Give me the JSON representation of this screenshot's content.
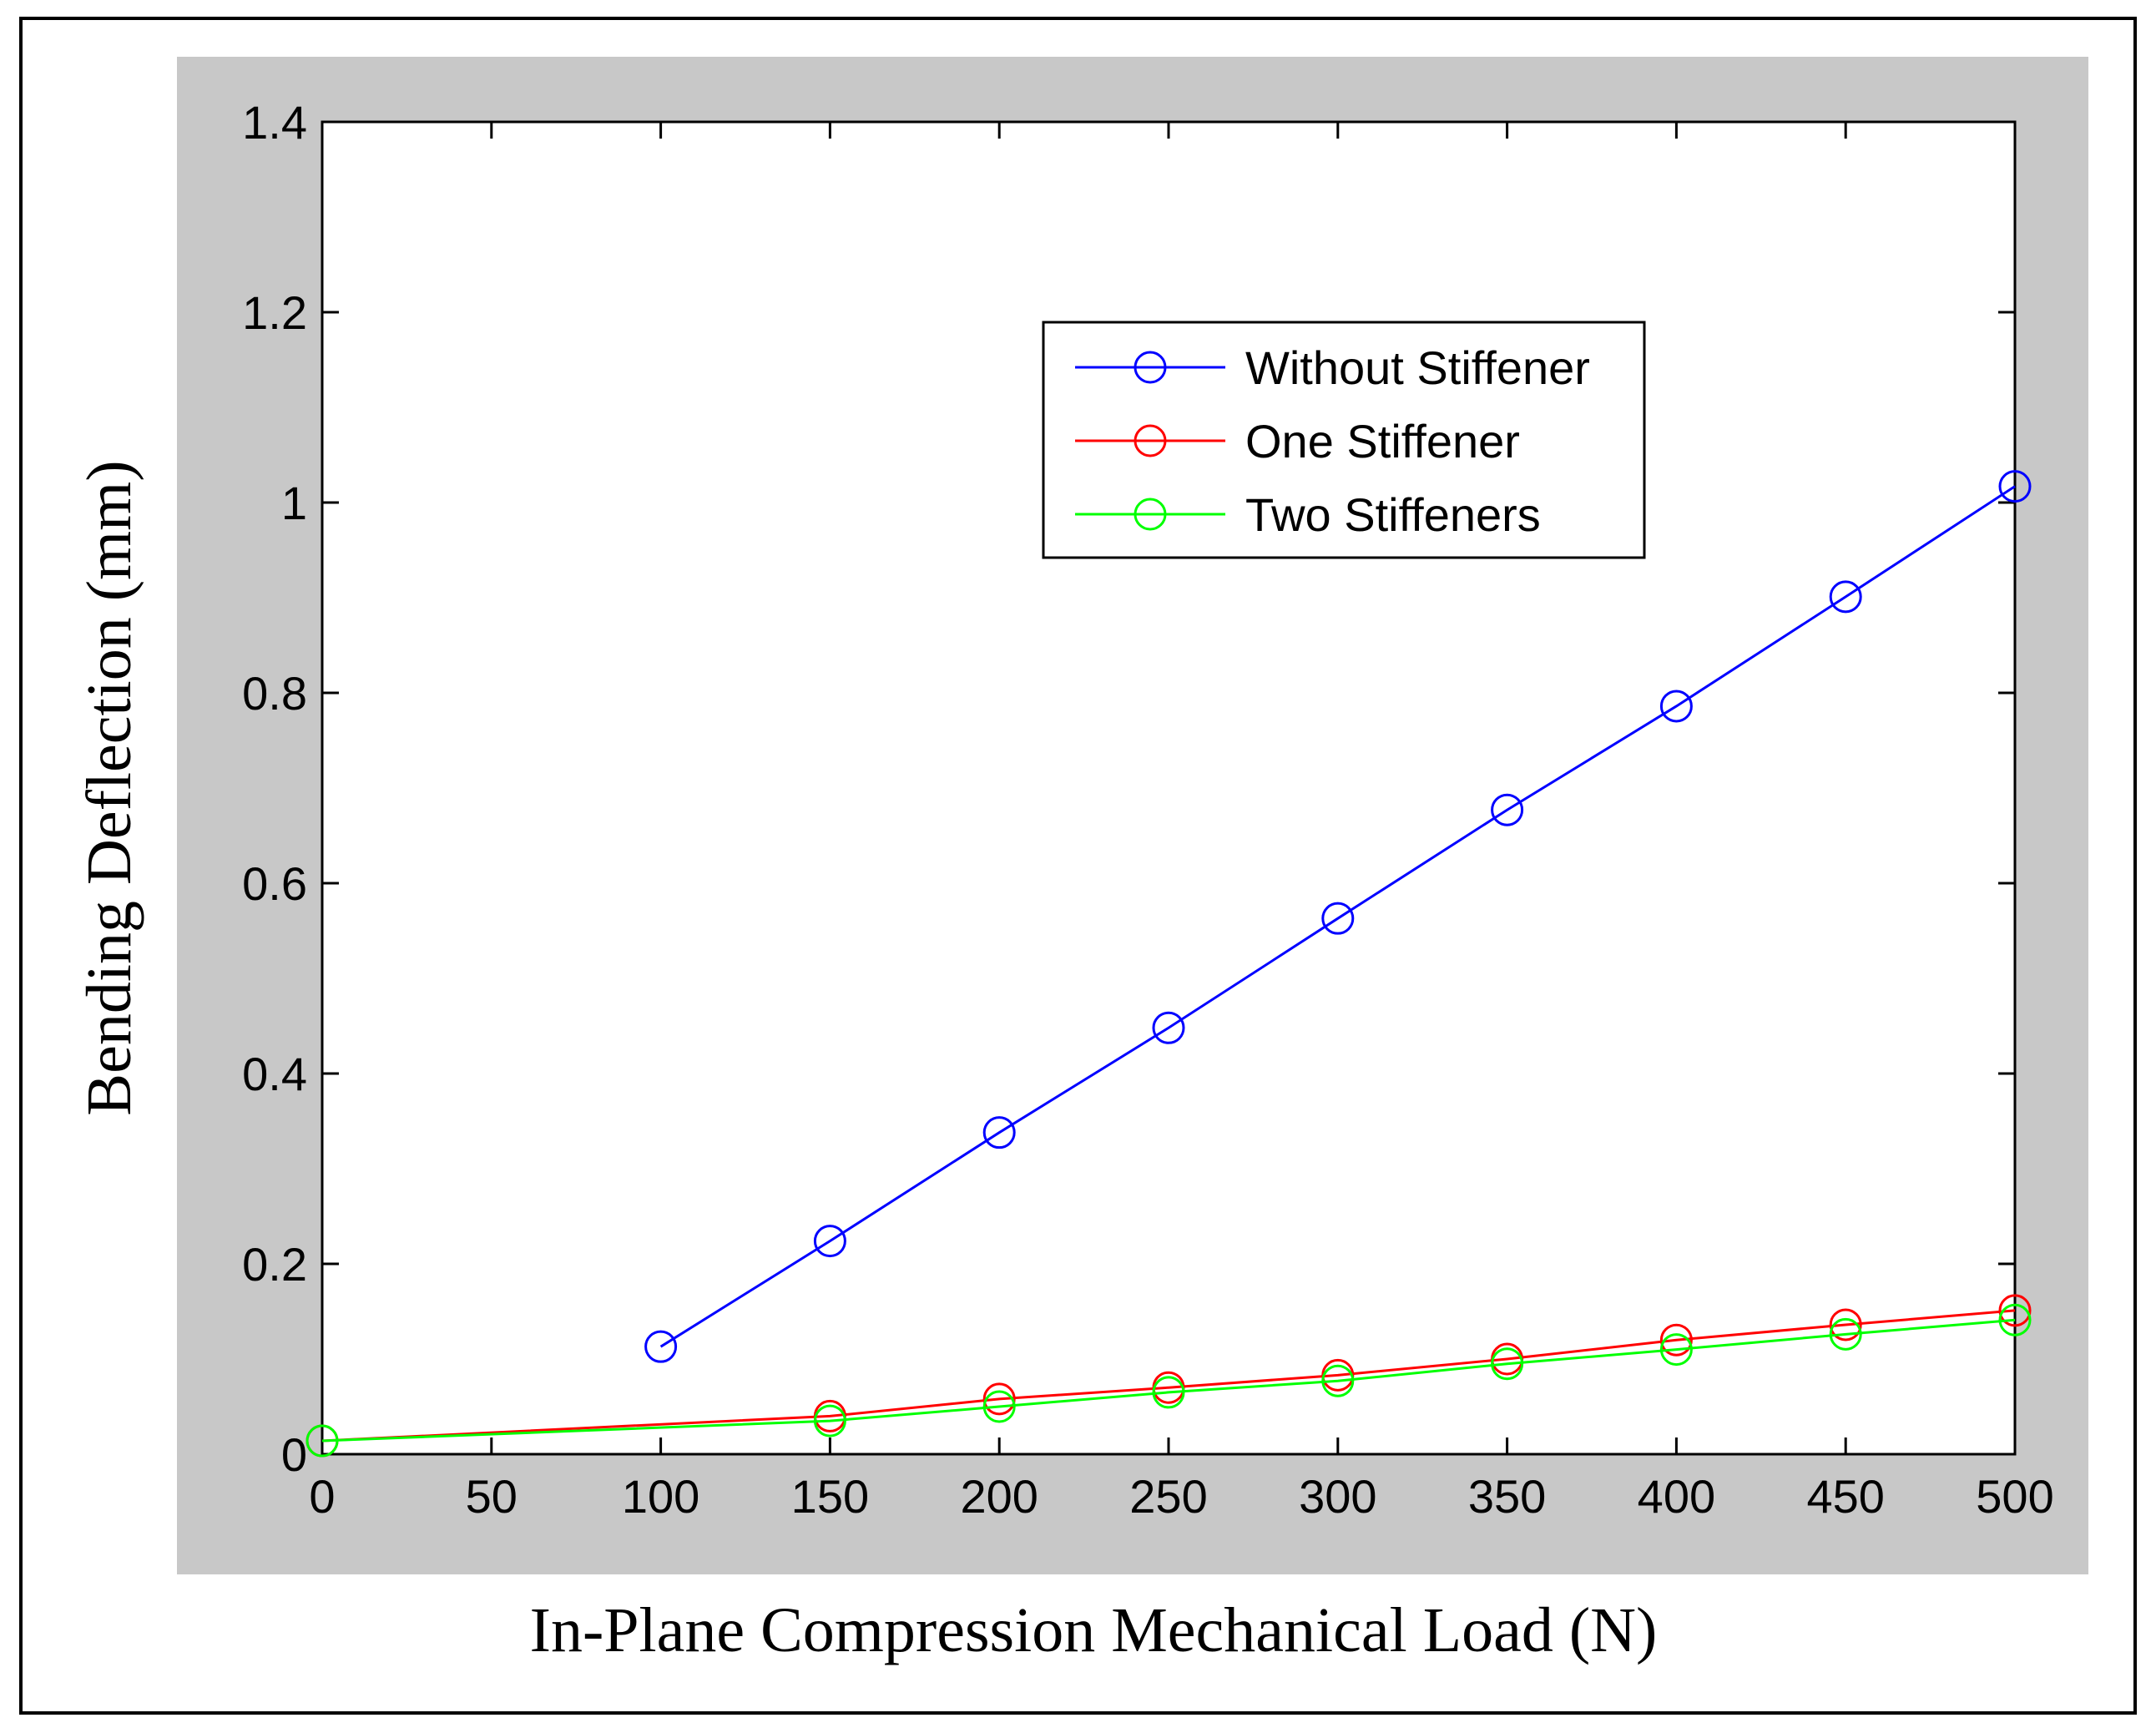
{
  "chart_data": {
    "type": "line",
    "title": "",
    "xlabel": "In-Plane Compression Mechanical Load (N)",
    "ylabel": "Bending Deflection (mm)",
    "xlim": [
      0,
      500
    ],
    "ylim": [
      0,
      1.4
    ],
    "xticks": [
      0,
      50,
      100,
      150,
      200,
      250,
      300,
      350,
      400,
      450,
      500
    ],
    "yticks": [
      0,
      0.2,
      0.4,
      0.6,
      0.8,
      1,
      1.2,
      1.4
    ],
    "xtick_labels": [
      "0",
      "50",
      "100",
      "150",
      "200",
      "250",
      "300",
      "350",
      "400",
      "450",
      "500"
    ],
    "ytick_labels": [
      "0",
      "0.2",
      "0.4",
      "0.6",
      "0.8",
      "1",
      "1.2",
      "1.4"
    ],
    "grid": false,
    "legend_position": "top-right",
    "series": [
      {
        "name": "Without Stiffener",
        "color": "#0000ff",
        "marker": "circle",
        "x": [
          100,
          150,
          200,
          250,
          300,
          350,
          400,
          450,
          500
        ],
        "y": [
          0.113,
          0.224,
          0.338,
          0.448,
          0.563,
          0.677,
          0.786,
          0.901,
          1.017
        ]
      },
      {
        "name": "One Stiffener",
        "color": "#ff0000",
        "marker": "circle",
        "x": [
          0,
          150,
          200,
          250,
          300,
          350,
          400,
          450,
          500
        ],
        "y": [
          0.014,
          0.04,
          0.058,
          0.07,
          0.083,
          0.1,
          0.12,
          0.136,
          0.151
        ]
      },
      {
        "name": "Two Stiffeners",
        "color": "#00ff00",
        "marker": "circle",
        "x": [
          0,
          150,
          200,
          250,
          300,
          350,
          400,
          450,
          500
        ],
        "y": [
          0.014,
          0.035,
          0.05,
          0.065,
          0.077,
          0.095,
          0.11,
          0.126,
          0.141
        ]
      }
    ]
  }
}
